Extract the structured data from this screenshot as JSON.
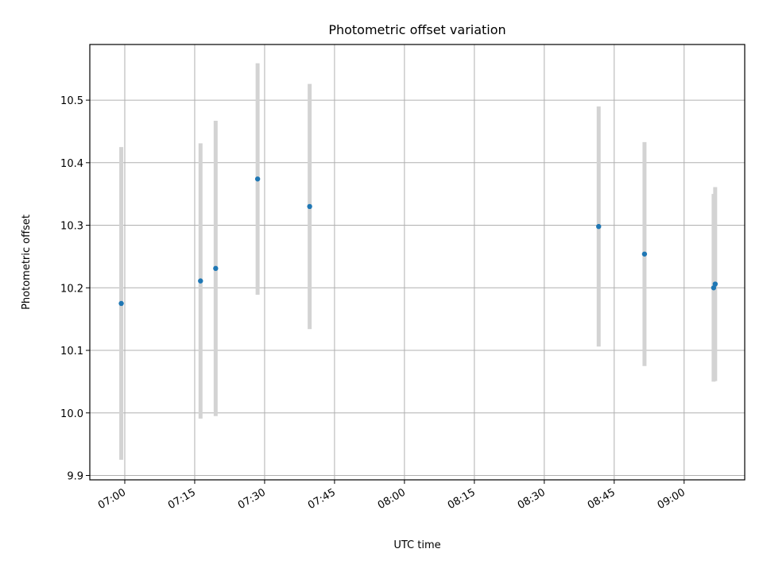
{
  "chart_data": {
    "type": "scatter",
    "title": "Photometric offset variation",
    "xlabel": "UTC time",
    "ylabel": "Photometric offset",
    "x_tick_labels": [
      "07:00",
      "07:15",
      "07:30",
      "07:45",
      "08:00",
      "08:15",
      "08:30",
      "08:45",
      "09:00"
    ],
    "y_tick_labels": [
      "9.9",
      "10.0",
      "10.1",
      "10.2",
      "10.3",
      "10.4",
      "10.5"
    ],
    "xlim": [
      "06:52:30",
      "09:13:00"
    ],
    "ylim": [
      9.893,
      10.589
    ],
    "grid": true,
    "series": [
      {
        "marker_color": "#1f77b4",
        "errorbar_color": "#d3d3d3",
        "points": [
          {
            "x": "06:59:15",
            "y": 10.175,
            "yerr": 0.25
          },
          {
            "x": "07:16:15",
            "y": 10.211,
            "yerr": 0.22
          },
          {
            "x": "07:19:30",
            "y": 10.231,
            "yerr": 0.236
          },
          {
            "x": "07:28:30",
            "y": 10.374,
            "yerr": 0.185
          },
          {
            "x": "07:39:40",
            "y": 10.33,
            "yerr": 0.196
          },
          {
            "x": "08:41:40",
            "y": 10.298,
            "yerr": 0.192
          },
          {
            "x": "08:51:30",
            "y": 10.254,
            "yerr": 0.179
          },
          {
            "x": "09:06:20",
            "y": 10.2,
            "yerr": 0.15
          },
          {
            "x": "09:06:40",
            "y": 10.206,
            "yerr": 0.155
          }
        ]
      }
    ]
  }
}
